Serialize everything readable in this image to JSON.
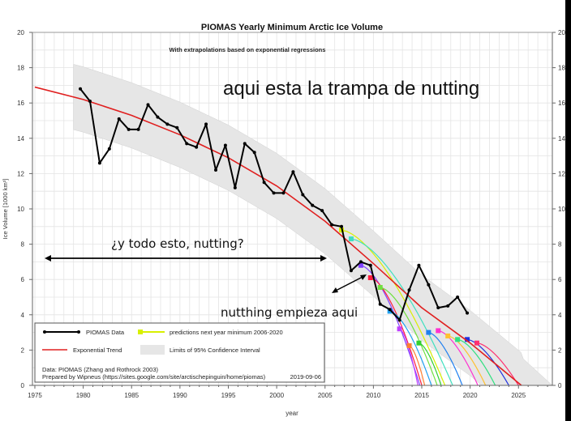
{
  "chart_data": {
    "type": "line",
    "title": "PIOMAS Yearly Minimum Arctic Ice Volume",
    "subtitle": "With extrapolations based on exponential regressions",
    "xlabel": "year",
    "ylabel": "Ice Volume [1000 km³]",
    "xlim": [
      1974.75,
      2028.5
    ],
    "ylim": [
      0,
      20
    ],
    "grid": true,
    "x_ticks": [
      "1975",
      "1980",
      "1985",
      "1990",
      "1995",
      "2000",
      "2005",
      "2010",
      "2015",
      "2020",
      "2025"
    ],
    "y_ticks": [
      "0",
      "2",
      "4",
      "6",
      "8",
      "10",
      "12",
      "14",
      "16",
      "18",
      "20"
    ],
    "series": [
      {
        "name": "PIOMAS Data",
        "color": "#000000",
        "x": [
          1979,
          1980,
          1981,
          1982,
          1983,
          1984,
          1985,
          1986,
          1987,
          1988,
          1989,
          1990,
          1991,
          1992,
          1993,
          1994,
          1995,
          1996,
          1997,
          1998,
          1999,
          2000,
          2001,
          2002,
          2003,
          2004,
          2005,
          2006,
          2007,
          2008,
          2009,
          2010,
          2011,
          2012,
          2013,
          2014,
          2015,
          2016,
          2017,
          2018,
          2019
        ],
        "values": [
          16.8,
          16.1,
          12.6,
          13.4,
          15.1,
          14.5,
          14.5,
          15.9,
          15.2,
          14.8,
          14.6,
          13.7,
          13.5,
          14.8,
          12.2,
          13.6,
          11.2,
          13.7,
          13.2,
          11.5,
          10.9,
          10.9,
          12.1,
          10.8,
          10.2,
          9.9,
          9.1,
          9.0,
          6.5,
          7.0,
          6.8,
          4.6,
          4.3,
          3.7,
          5.4,
          6.8,
          5.7,
          4.4,
          4.5,
          5.0,
          4.1
        ]
      },
      {
        "name": "Exponential Trend",
        "color": "#e02020",
        "x": [
          1975,
          1980,
          1985,
          1990,
          1995,
          2000,
          2005,
          2010,
          2015,
          2020,
          2025.3
        ],
        "values": [
          16.9,
          16.2,
          15.3,
          14.2,
          12.9,
          11.3,
          9.3,
          6.9,
          4.4,
          2.4,
          0
        ]
      }
    ],
    "confidence_halfwidth": 1.85,
    "predictions": {
      "name": "predictions next year minimum 2006-2020",
      "items": [
        {
          "x": 2006.7,
          "value": 8.8,
          "zero_year": 2017.4,
          "color": "#d8f000"
        },
        {
          "x": 2007.7,
          "value": 8.3,
          "zero_year": 2018.2,
          "color": "#40e0c0"
        },
        {
          "x": 2008.7,
          "value": 6.8,
          "zero_year": 2014.8,
          "color": "#8040ff"
        },
        {
          "x": 2009.7,
          "value": 6.1,
          "zero_year": 2015.0,
          "color": "#ff2040"
        },
        {
          "x": 2010.7,
          "value": 5.55,
          "zero_year": 2016.6,
          "color": "#70e040"
        },
        {
          "x": 2011.7,
          "value": 4.2,
          "zero_year": 2016.0,
          "color": "#20a0f0"
        },
        {
          "x": 2012.7,
          "value": 3.2,
          "zero_year": 2014.6,
          "color": "#c040ff"
        },
        {
          "x": 2013.7,
          "value": 2.25,
          "zero_year": 2015.3,
          "color": "#ff8030"
        },
        {
          "x": 2014.7,
          "value": 2.4,
          "zero_year": 2017.0,
          "color": "#30d030"
        },
        {
          "x": 2015.7,
          "value": 3.0,
          "zero_year": 2019.2,
          "color": "#2080f0"
        },
        {
          "x": 2016.7,
          "value": 3.1,
          "zero_year": 2020.8,
          "color": "#ff30d0"
        },
        {
          "x": 2017.7,
          "value": 2.8,
          "zero_year": 2021.6,
          "color": "#ffc030"
        },
        {
          "x": 2018.7,
          "value": 2.6,
          "zero_year": 2022.6,
          "color": "#30e080"
        },
        {
          "x": 2019.7,
          "value": 2.6,
          "zero_year": 2024.0,
          "color": "#2030e0"
        },
        {
          "x": 2020.7,
          "value": 2.4,
          "zero_year": 2025.0,
          "color": "#ff3070"
        }
      ]
    },
    "legend": {
      "placement": "bottom-left",
      "piomas": "PIOMAS Data",
      "predictions": "predictions next year minimum 2006-2020",
      "trend": "Exponential Trend",
      "ci": "Limits of 95% Confidence Interval",
      "source": "Data: PIOMAS (Zhang and Rothrock 2003)",
      "prepared": "Prepared by Wipneus (https://sites.google.com/site/arctischepinguin/home/piomas)",
      "date": "2019-09-06"
    }
  },
  "annotations": {
    "trap": "aqui esta la trampa de nutting",
    "all_this": "¿y todo esto, nutting?",
    "starts": "nutthing empieza aqui"
  }
}
